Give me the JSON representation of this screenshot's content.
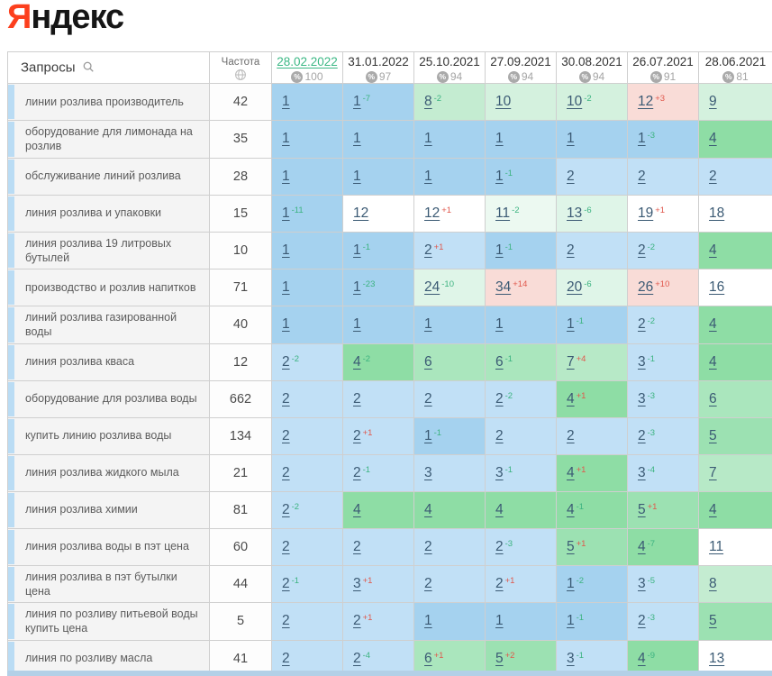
{
  "logo": {
    "accent_letter": "Я",
    "rest": "ндекс",
    "accent_color": "#fc3f1d"
  },
  "icons": {
    "queries": "search-icon",
    "frequency": "globe-icon",
    "visibility": "percent-icon"
  },
  "status_colors": {
    "improved_delta": "#3cb380",
    "declined_delta": "#e0584c",
    "selected_date": "#3cb885",
    "top1_bg": "#a5d2ef",
    "top3_bg": "#c1e0f6",
    "top10_bg": "#8edda5",
    "declined_bg": "#f9dcd7"
  },
  "table": {
    "queries_header": "Запросы",
    "frequency_header": "Частота",
    "columns": [
      {
        "date": "28.02.2022",
        "visibility": "100",
        "selected": true
      },
      {
        "date": "31.01.2022",
        "visibility": "97",
        "selected": false
      },
      {
        "date": "25.10.2021",
        "visibility": "94",
        "selected": false
      },
      {
        "date": "27.09.2021",
        "visibility": "94",
        "selected": false
      },
      {
        "date": "30.08.2021",
        "visibility": "94",
        "selected": false
      },
      {
        "date": "26.07.2021",
        "visibility": "91",
        "selected": false
      },
      {
        "date": "28.06.2021",
        "visibility": "81",
        "selected": false
      }
    ],
    "rows": [
      {
        "query": "линии розлива производитель",
        "frequency": "42",
        "cells": [
          {
            "pos": "1",
            "delta": "",
            "bg": "b1"
          },
          {
            "pos": "1",
            "delta": "-7",
            "bg": "b1"
          },
          {
            "pos": "8",
            "delta": "-2",
            "bg": "g8"
          },
          {
            "pos": "10",
            "delta": "",
            "bg": "g10"
          },
          {
            "pos": "10",
            "delta": "-2",
            "bg": "g10"
          },
          {
            "pos": "12",
            "delta": "+3",
            "bg": "pk"
          },
          {
            "pos": "9",
            "delta": "",
            "bg": "g10"
          }
        ]
      },
      {
        "query": "оборудование для лимонада на розлив",
        "frequency": "35",
        "cells": [
          {
            "pos": "1",
            "delta": "",
            "bg": "b1"
          },
          {
            "pos": "1",
            "delta": "",
            "bg": "b1"
          },
          {
            "pos": "1",
            "delta": "",
            "bg": "b1"
          },
          {
            "pos": "1",
            "delta": "",
            "bg": "b1"
          },
          {
            "pos": "1",
            "delta": "",
            "bg": "b1"
          },
          {
            "pos": "1",
            "delta": "-3",
            "bg": "b1"
          },
          {
            "pos": "4",
            "delta": "",
            "bg": "g4"
          }
        ]
      },
      {
        "query": "обслуживание линий розлива",
        "frequency": "28",
        "cells": [
          {
            "pos": "1",
            "delta": "",
            "bg": "b1"
          },
          {
            "pos": "1",
            "delta": "",
            "bg": "b1"
          },
          {
            "pos": "1",
            "delta": "",
            "bg": "b1"
          },
          {
            "pos": "1",
            "delta": "-1",
            "bg": "b1"
          },
          {
            "pos": "2",
            "delta": "",
            "bg": "b2"
          },
          {
            "pos": "2",
            "delta": "",
            "bg": "b2"
          },
          {
            "pos": "2",
            "delta": "",
            "bg": "b2"
          }
        ]
      },
      {
        "query": "линия розлива и упаковки",
        "frequency": "15",
        "cells": [
          {
            "pos": "1",
            "delta": "-11",
            "bg": "b1"
          },
          {
            "pos": "12",
            "delta": "",
            "bg": "wh"
          },
          {
            "pos": "12",
            "delta": "+1",
            "bg": "wh"
          },
          {
            "pos": "11",
            "delta": "-2",
            "bg": "gp2"
          },
          {
            "pos": "13",
            "delta": "-6",
            "bg": "gp"
          },
          {
            "pos": "19",
            "delta": "+1",
            "bg": "wh"
          },
          {
            "pos": "18",
            "delta": "",
            "bg": "wh"
          }
        ]
      },
      {
        "query": "линия розлива 19 литровых бутылей",
        "frequency": "10",
        "cells": [
          {
            "pos": "1",
            "delta": "",
            "bg": "b1"
          },
          {
            "pos": "1",
            "delta": "-1",
            "bg": "b1"
          },
          {
            "pos": "2",
            "delta": "+1",
            "bg": "b2"
          },
          {
            "pos": "1",
            "delta": "-1",
            "bg": "b1"
          },
          {
            "pos": "2",
            "delta": "",
            "bg": "b2"
          },
          {
            "pos": "2",
            "delta": "-2",
            "bg": "b2"
          },
          {
            "pos": "4",
            "delta": "",
            "bg": "g4"
          }
        ]
      },
      {
        "query": "производство и розлив напитков",
        "frequency": "71",
        "cells": [
          {
            "pos": "1",
            "delta": "",
            "bg": "b1"
          },
          {
            "pos": "1",
            "delta": "-23",
            "bg": "b1"
          },
          {
            "pos": "24",
            "delta": "-10",
            "bg": "gp"
          },
          {
            "pos": "34",
            "delta": "+14",
            "bg": "pk"
          },
          {
            "pos": "20",
            "delta": "-6",
            "bg": "gp"
          },
          {
            "pos": "26",
            "delta": "+10",
            "bg": "pk"
          },
          {
            "pos": "16",
            "delta": "",
            "bg": "wh"
          }
        ]
      },
      {
        "query": "линий розлива газированной воды",
        "frequency": "40",
        "cells": [
          {
            "pos": "1",
            "delta": "",
            "bg": "b1"
          },
          {
            "pos": "1",
            "delta": "",
            "bg": "b1"
          },
          {
            "pos": "1",
            "delta": "",
            "bg": "b1"
          },
          {
            "pos": "1",
            "delta": "",
            "bg": "b1"
          },
          {
            "pos": "1",
            "delta": "-1",
            "bg": "b1"
          },
          {
            "pos": "2",
            "delta": "-2",
            "bg": "b2"
          },
          {
            "pos": "4",
            "delta": "",
            "bg": "g4"
          }
        ]
      },
      {
        "query": "линия розлива кваса",
        "frequency": "12",
        "cells": [
          {
            "pos": "2",
            "delta": "-2",
            "bg": "b2"
          },
          {
            "pos": "4",
            "delta": "-2",
            "bg": "g4"
          },
          {
            "pos": "6",
            "delta": "",
            "bg": "g6"
          },
          {
            "pos": "6",
            "delta": "-1",
            "bg": "g6"
          },
          {
            "pos": "7",
            "delta": "+4",
            "bg": "g7"
          },
          {
            "pos": "3",
            "delta": "-1",
            "bg": "b2"
          },
          {
            "pos": "4",
            "delta": "",
            "bg": "g4"
          }
        ]
      },
      {
        "query": "оборудование для розлива воды",
        "frequency": "662",
        "cells": [
          {
            "pos": "2",
            "delta": "",
            "bg": "b2"
          },
          {
            "pos": "2",
            "delta": "",
            "bg": "b2"
          },
          {
            "pos": "2",
            "delta": "",
            "bg": "b2"
          },
          {
            "pos": "2",
            "delta": "-2",
            "bg": "b2"
          },
          {
            "pos": "4",
            "delta": "+1",
            "bg": "g4"
          },
          {
            "pos": "3",
            "delta": "-3",
            "bg": "b2"
          },
          {
            "pos": "6",
            "delta": "",
            "bg": "g6"
          }
        ]
      },
      {
        "query": "купить линию розлива воды",
        "frequency": "134",
        "cells": [
          {
            "pos": "2",
            "delta": "",
            "bg": "b2"
          },
          {
            "pos": "2",
            "delta": "+1",
            "bg": "b2"
          },
          {
            "pos": "1",
            "delta": "-1",
            "bg": "b1"
          },
          {
            "pos": "2",
            "delta": "",
            "bg": "b2"
          },
          {
            "pos": "2",
            "delta": "",
            "bg": "b2"
          },
          {
            "pos": "2",
            "delta": "-3",
            "bg": "b2"
          },
          {
            "pos": "5",
            "delta": "",
            "bg": "g5"
          }
        ]
      },
      {
        "query": "линия розлива жидкого мыла",
        "frequency": "21",
        "cells": [
          {
            "pos": "2",
            "delta": "",
            "bg": "b2"
          },
          {
            "pos": "2",
            "delta": "-1",
            "bg": "b2"
          },
          {
            "pos": "3",
            "delta": "",
            "bg": "b2"
          },
          {
            "pos": "3",
            "delta": "-1",
            "bg": "b2"
          },
          {
            "pos": "4",
            "delta": "+1",
            "bg": "g4"
          },
          {
            "pos": "3",
            "delta": "-4",
            "bg": "b2"
          },
          {
            "pos": "7",
            "delta": "",
            "bg": "g7"
          }
        ]
      },
      {
        "query": "линия розлива химии",
        "frequency": "81",
        "cells": [
          {
            "pos": "2",
            "delta": "-2",
            "bg": "b2"
          },
          {
            "pos": "4",
            "delta": "",
            "bg": "g4"
          },
          {
            "pos": "4",
            "delta": "",
            "bg": "g4"
          },
          {
            "pos": "4",
            "delta": "",
            "bg": "g4"
          },
          {
            "pos": "4",
            "delta": "-1",
            "bg": "g4"
          },
          {
            "pos": "5",
            "delta": "+1",
            "bg": "g5"
          },
          {
            "pos": "4",
            "delta": "",
            "bg": "g4"
          }
        ]
      },
      {
        "query": "линия розлива воды в пэт цена",
        "frequency": "60",
        "cells": [
          {
            "pos": "2",
            "delta": "",
            "bg": "b2"
          },
          {
            "pos": "2",
            "delta": "",
            "bg": "b2"
          },
          {
            "pos": "2",
            "delta": "",
            "bg": "b2"
          },
          {
            "pos": "2",
            "delta": "-3",
            "bg": "b2"
          },
          {
            "pos": "5",
            "delta": "+1",
            "bg": "g5"
          },
          {
            "pos": "4",
            "delta": "-7",
            "bg": "g4"
          },
          {
            "pos": "11",
            "delta": "",
            "bg": "wh"
          }
        ]
      },
      {
        "query": "линия розлива в пэт бутылки цена",
        "frequency": "44",
        "cells": [
          {
            "pos": "2",
            "delta": "-1",
            "bg": "b2"
          },
          {
            "pos": "3",
            "delta": "+1",
            "bg": "b2"
          },
          {
            "pos": "2",
            "delta": "",
            "bg": "b2"
          },
          {
            "pos": "2",
            "delta": "+1",
            "bg": "b2"
          },
          {
            "pos": "1",
            "delta": "-2",
            "bg": "b1"
          },
          {
            "pos": "3",
            "delta": "-5",
            "bg": "b2"
          },
          {
            "pos": "8",
            "delta": "",
            "bg": "g8"
          }
        ]
      },
      {
        "query": "линия по розливу питьевой воды купить цена",
        "frequency": "5",
        "cells": [
          {
            "pos": "2",
            "delta": "",
            "bg": "b2"
          },
          {
            "pos": "2",
            "delta": "+1",
            "bg": "b2"
          },
          {
            "pos": "1",
            "delta": "",
            "bg": "b1"
          },
          {
            "pos": "1",
            "delta": "",
            "bg": "b1"
          },
          {
            "pos": "1",
            "delta": "-1",
            "bg": "b1"
          },
          {
            "pos": "2",
            "delta": "-3",
            "bg": "b2"
          },
          {
            "pos": "5",
            "delta": "",
            "bg": "g5"
          }
        ]
      },
      {
        "query": "линия по розливу масла",
        "frequency": "41",
        "cells": [
          {
            "pos": "2",
            "delta": "",
            "bg": "b2"
          },
          {
            "pos": "2",
            "delta": "-4",
            "bg": "b2"
          },
          {
            "pos": "6",
            "delta": "+1",
            "bg": "g6"
          },
          {
            "pos": "5",
            "delta": "+2",
            "bg": "g5"
          },
          {
            "pos": "3",
            "delta": "-1",
            "bg": "b2"
          },
          {
            "pos": "4",
            "delta": "-9",
            "bg": "g4"
          },
          {
            "pos": "13",
            "delta": "",
            "bg": "wh"
          }
        ]
      }
    ]
  }
}
